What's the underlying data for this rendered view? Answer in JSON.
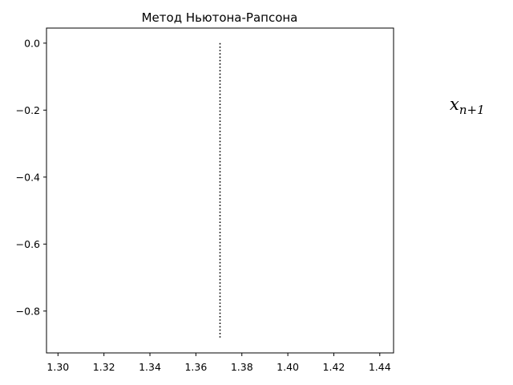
{
  "chart_data": {
    "type": "line",
    "title": "Метод Ньютона-Рапсона",
    "xlabel": "",
    "ylabel": "",
    "xlim": [
      1.295,
      1.446
    ],
    "ylim": [
      -0.925,
      0.045
    ],
    "grid": false,
    "x_ticks": [
      1.3,
      1.32,
      1.34,
      1.36,
      1.38,
      1.4,
      1.42,
      1.44
    ],
    "x_tick_labels": [
      "1.30",
      "1.32",
      "1.34",
      "1.36",
      "1.38",
      "1.40",
      "1.42",
      "1.44"
    ],
    "y_ticks": [
      0.0,
      -0.2,
      -0.4,
      -0.6,
      -0.8
    ],
    "y_tick_labels": [
      "0.0",
      "−0.2",
      "−0.4",
      "−0.6",
      "−0.8"
    ],
    "series": [
      {
        "name": "vertical dotted line",
        "style": "dotted",
        "color": "#000000",
        "x": [
          1.3705,
          1.3705
        ],
        "y": [
          0.0,
          -0.88
        ]
      }
    ],
    "annotations": [
      {
        "text": "x",
        "subscript": "n+1",
        "x": 1.52,
        "y": -0.2
      }
    ]
  }
}
